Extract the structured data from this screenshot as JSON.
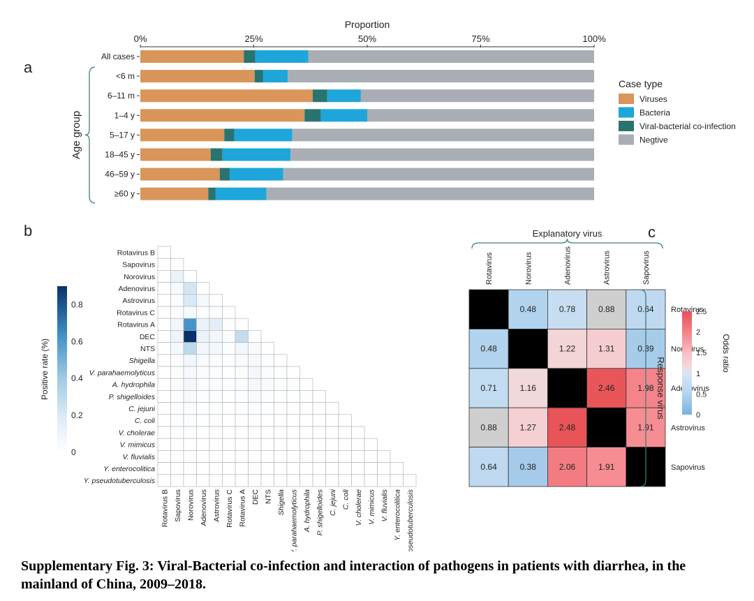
{
  "panel_labels": {
    "a": "a",
    "b": "b",
    "c": "c"
  },
  "colors": {
    "viruses": "#D9955A",
    "bacteria": "#1EA6DB",
    "coinfection": "#2A7470",
    "negative": "#A9ADB4"
  },
  "caption": "Supplementary Fig. 3: Viral-Bacterial co-infection and interaction of pathogens in patients with diarrhea, in the mainland of China, 2009–2018.",
  "chart_data": [
    {
      "type": "bar",
      "orientation": "horizontal",
      "stacked": true,
      "xlabel": "Proportion",
      "ylabel": "Age group",
      "ticks": [
        "0%",
        "25%",
        "50%",
        "75%",
        "100%"
      ],
      "xlim": [
        0,
        100
      ],
      "categories": [
        "All cases",
        "<6 m",
        "6–11 m",
        "1–4 y",
        "5–17 y",
        "18–45 y",
        "46–59 y",
        "≥60 y"
      ],
      "series": [
        {
          "name": "Viruses",
          "values": [
            22.8,
            25.2,
            38.0,
            36.2,
            18.5,
            15.5,
            17.5,
            15.0
          ]
        },
        {
          "name": "Viral-bacterial co-infection",
          "values": [
            2.5,
            1.8,
            3.2,
            3.6,
            2.2,
            2.6,
            2.2,
            1.6
          ]
        },
        {
          "name": "Bacteria",
          "values": [
            11.7,
            5.5,
            7.4,
            10.2,
            12.8,
            15.0,
            11.8,
            11.2
          ]
        },
        {
          "name": "Negtive",
          "values": [
            63.0,
            67.5,
            51.4,
            50.0,
            66.5,
            66.9,
            68.5,
            72.2
          ]
        }
      ],
      "legend": {
        "title": "Case type",
        "position": "right",
        "items": [
          "Viruses",
          "Bacteria",
          "Viral-bacterial co-infection",
          "Negtive"
        ]
      }
    },
    {
      "type": "heatmap",
      "shape": "lower-triangle",
      "colorbar_label": "Positive rate (%)",
      "colorbar_ticks": [
        "0",
        "0.2",
        "0.4",
        "0.6",
        "0.8"
      ],
      "colorbar_range": [
        0,
        0.9
      ],
      "labels": [
        "Rotavirus B",
        "Sapovirus",
        "Norovirus",
        "Adenovirus",
        "Astrovirus",
        "Rotavirus C",
        "Rotavirus A",
        "DEC",
        "NTS",
        "Shigella",
        "V. parahaemolyticus",
        "A. hydrophila",
        "P. shigelloides",
        "C. jejuni",
        "C. coli",
        "V. cholerae",
        "V. mimicus",
        "V. fluvialis",
        "Y. enterocolitica",
        "Y. pseudotuberculosis"
      ],
      "italic_from": 9,
      "values": [
        [
          0
        ],
        [
          0,
          0
        ],
        [
          0,
          0.12,
          0
        ],
        [
          0,
          0.05,
          0.22,
          0
        ],
        [
          0,
          0.03,
          0.2,
          0.07,
          0
        ],
        [
          0,
          0.02,
          0.05,
          0.01,
          0.01,
          0
        ],
        [
          0,
          0.08,
          0.62,
          0.12,
          0.16,
          0.02,
          0
        ],
        [
          0,
          0.1,
          0.9,
          0.12,
          0.08,
          0.03,
          0.28,
          0
        ],
        [
          0,
          0.06,
          0.3,
          0.08,
          0.07,
          0.02,
          0.08,
          0.05,
          0
        ],
        [
          0,
          0.03,
          0.08,
          0.04,
          0.03,
          0.01,
          0.04,
          0.05,
          0.02,
          0
        ],
        [
          0,
          0.03,
          0.06,
          0.03,
          0.03,
          0.01,
          0.03,
          0.07,
          0.03,
          0.01,
          0
        ],
        [
          0,
          0.03,
          0.07,
          0.03,
          0.02,
          0.01,
          0.03,
          0.06,
          0.04,
          0.02,
          0.02,
          0
        ],
        [
          0,
          0.02,
          0.05,
          0.02,
          0.02,
          0.01,
          0.02,
          0.04,
          0.02,
          0.01,
          0.01,
          0.02,
          0
        ],
        [
          0,
          0.01,
          0.03,
          0.01,
          0.01,
          0,
          0.01,
          0.02,
          0.01,
          0.01,
          0,
          0.01,
          0,
          0
        ],
        [
          0,
          0.01,
          0.02,
          0.01,
          0.01,
          0,
          0.01,
          0.01,
          0.01,
          0,
          0,
          0,
          0,
          0,
          0
        ],
        [
          0,
          0,
          0.01,
          0,
          0,
          0,
          0,
          0.01,
          0,
          0,
          0,
          0,
          0,
          0,
          0,
          0
        ],
        [
          0,
          0,
          0,
          0,
          0,
          0,
          0,
          0,
          0,
          0,
          0,
          0,
          0,
          0,
          0,
          0,
          0
        ],
        [
          0,
          0,
          0.01,
          0,
          0,
          0,
          0,
          0.01,
          0,
          0,
          0,
          0.02,
          0,
          0,
          0,
          0,
          0,
          0
        ],
        [
          0,
          0,
          0.01,
          0,
          0,
          0,
          0,
          0.02,
          0,
          0,
          0,
          0,
          0,
          0,
          0,
          0,
          0,
          0,
          0
        ],
        [
          0,
          0,
          0,
          0,
          0,
          0,
          0,
          0,
          0,
          0,
          0,
          0,
          0,
          0,
          0,
          0,
          0,
          0,
          0,
          0
        ]
      ]
    },
    {
      "type": "heatmap",
      "xlabel": "Explanatory virus",
      "ylabel": "Response virus",
      "colorbar_label": "Odds ratio",
      "colorbar_ticks": [
        "0",
        "0.5",
        "1",
        "1.5",
        "2",
        "2.5"
      ],
      "colorbar_range": [
        0,
        2.5
      ],
      "columns": [
        "Rotavirus",
        "Norovirus",
        "Adenovirus",
        "Astrovirus",
        "Sapovirus"
      ],
      "rows": [
        "Rotavirus",
        "Norovirus",
        "Adenovirus",
        "Astrovirus",
        "Sapovirus"
      ],
      "values": [
        [
          null,
          0.48,
          0.78,
          0.88,
          0.64
        ],
        [
          0.48,
          null,
          1.22,
          1.31,
          0.39
        ],
        [
          0.71,
          1.16,
          null,
          2.46,
          1.98
        ],
        [
          0.88,
          1.27,
          2.48,
          null,
          1.91
        ],
        [
          0.64,
          0.38,
          2.06,
          1.91,
          null
        ]
      ],
      "labels": [
        [
          "",
          "0.48",
          "0.78",
          "0.88",
          "0.64"
        ],
        [
          "0.48",
          "",
          "1.22",
          "1.31",
          "0.39"
        ],
        [
          "0.71",
          "1.16",
          "",
          "2.46",
          "1.98"
        ],
        [
          "0.88",
          "1.27",
          "2.48",
          "",
          "1.91"
        ],
        [
          "0.64",
          "0.38",
          "2.06",
          "1.91",
          ""
        ]
      ],
      "grey_cells": [
        [
          0,
          3
        ],
        [
          3,
          0
        ]
      ],
      "diagonal": "black"
    }
  ]
}
